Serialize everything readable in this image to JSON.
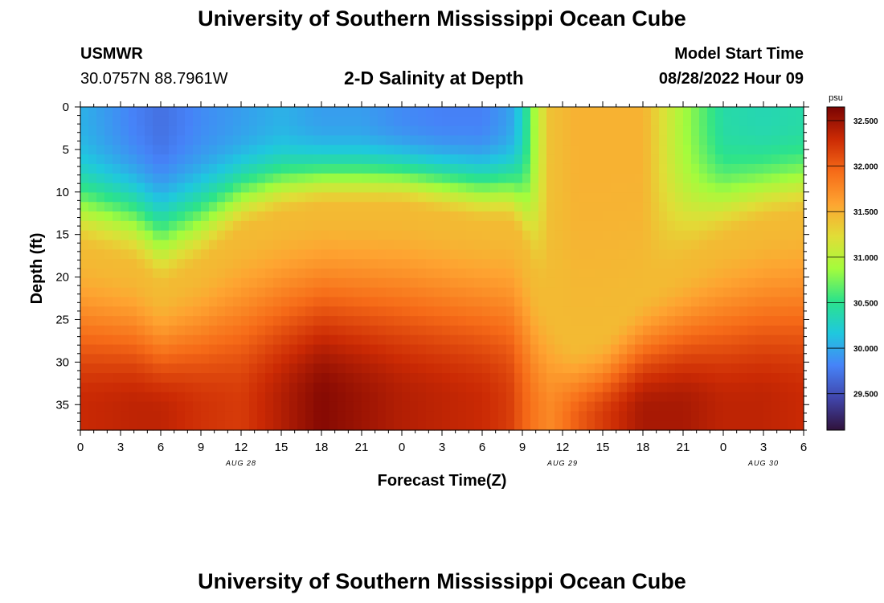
{
  "header": {
    "title": "University of Southern Mississippi Ocean Cube",
    "station": "USMWR",
    "coords": "30.0757N  88.7961W",
    "subtitle": "2-D Salinity at Depth",
    "model_start_label": "Model Start Time",
    "model_start_value": "08/28/2022 Hour 09"
  },
  "footer": {
    "title": "University of Southern Mississippi Ocean Cube"
  },
  "chart_data": {
    "type": "heatmap",
    "title": "2-D Salinity at Depth",
    "xlabel": "Forecast Time(Z)",
    "ylabel": "Depth (ft)",
    "x_range_hours": [
      0,
      54
    ],
    "x_ticks": [
      "0",
      "3",
      "6",
      "9",
      "12",
      "15",
      "18",
      "21",
      "0",
      "3",
      "6",
      "9",
      "12",
      "15",
      "18",
      "21",
      "0",
      "3",
      "6"
    ],
    "date_labels": [
      {
        "label": "AUG 28",
        "hour": 12
      },
      {
        "label": "AUG 29",
        "hour": 36
      },
      {
        "label": "AUG 30",
        "hour": 51
      }
    ],
    "y_range_ft": [
      0,
      38
    ],
    "y_ticks": [
      "0",
      "5",
      "10",
      "15",
      "20",
      "25",
      "30",
      "35"
    ],
    "colorbar": {
      "unit": "psu",
      "range": [
        29.1,
        32.65
      ],
      "ticks": [
        "29.500",
        "30.000",
        "30.500",
        "31.000",
        "31.500",
        "32.000",
        "32.500"
      ]
    },
    "colors": {
      "scale": [
        "#30123b",
        "#4146ac",
        "#4683f8",
        "#1fc8de",
        "#2ce38a",
        "#a4fc3c",
        "#e1dd37",
        "#fea431",
        "#f66b18",
        "#cb2a04",
        "#7a0403"
      ]
    },
    "salinity_profile": {
      "hours": [
        0,
        4,
        6,
        9,
        12,
        15,
        18,
        21,
        24,
        27,
        30,
        32,
        33,
        34,
        35,
        36,
        37,
        39,
        42,
        45,
        48,
        51,
        54
      ],
      "surface_psu": [
        30.05,
        29.8,
        29.7,
        29.85,
        29.95,
        30.05,
        29.95,
        29.95,
        29.85,
        29.8,
        29.8,
        29.95,
        30.25,
        30.95,
        31.4,
        31.45,
        31.5,
        31.5,
        31.5,
        30.9,
        30.4,
        30.35,
        30.4
      ],
      "mid_depth_ft": [
        17,
        19,
        22,
        19,
        15,
        13,
        12,
        12,
        12,
        13,
        14,
        14,
        16,
        21,
        24,
        27,
        28,
        27,
        22,
        19,
        16,
        14,
        13
      ],
      "bottom_psu": [
        32.3,
        32.35,
        32.35,
        32.25,
        32.2,
        32.4,
        32.6,
        32.5,
        32.4,
        32.35,
        32.3,
        32.2,
        32.0,
        31.85,
        31.75,
        31.85,
        32.0,
        32.2,
        32.45,
        32.45,
        32.35,
        32.35,
        32.3
      ],
      "mid_psu": 31.45
    }
  }
}
